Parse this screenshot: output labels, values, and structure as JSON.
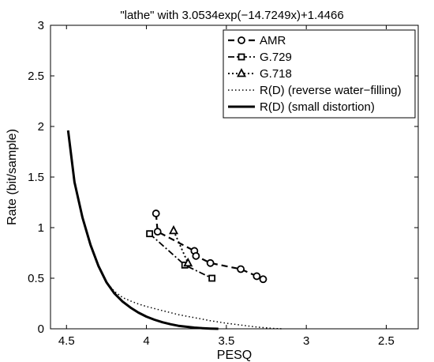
{
  "chart_data": {
    "type": "line",
    "title": "\"lathe\" with 3.0534exp(−14.7249x)+1.4466",
    "xlabel": "PESQ",
    "ylabel": "Rate (bit/sample)",
    "xlim": [
      4.6,
      2.3
    ],
    "ylim": [
      0,
      3
    ],
    "x_reversed": true,
    "grid": false,
    "legend_position": "top-right",
    "xticks": [
      4.5,
      4,
      3.5,
      3,
      2.5
    ],
    "xtick_labels": [
      "4.5",
      "4",
      "3.5",
      "3",
      "2.5"
    ],
    "yticks": [
      0,
      0.5,
      1,
      1.5,
      2,
      2.5,
      3
    ],
    "ytick_labels": [
      "0",
      "0.5",
      "1",
      "1.5",
      "2",
      "2.5",
      "3"
    ],
    "series": [
      {
        "name": "AMR",
        "style": "dashed",
        "marker": "circle",
        "x": [
          3.94,
          3.93,
          3.7,
          3.69,
          3.6,
          3.41,
          3.31,
          3.27
        ],
        "y": [
          1.14,
          0.96,
          0.77,
          0.72,
          0.65,
          0.59,
          0.52,
          0.49
        ]
      },
      {
        "name": "G.729",
        "style": "dashdot",
        "marker": "square",
        "x": [
          3.98,
          3.76,
          3.59
        ],
        "y": [
          0.94,
          0.63,
          0.5
        ]
      },
      {
        "name": "G.718",
        "style": "dotted",
        "marker": "triangle",
        "x": [
          3.83,
          3.74
        ],
        "y": [
          0.97,
          0.65
        ]
      },
      {
        "name": "R(D) (reverse water−filling)",
        "style": "fine-dotted",
        "marker": "none",
        "x": [
          4.49,
          4.45,
          4.4,
          4.35,
          4.3,
          4.25,
          4.2,
          4.15,
          4.1,
          4.05,
          4.0,
          3.95,
          3.9,
          3.85,
          3.8,
          3.75,
          3.7,
          3.65,
          3.6,
          3.55,
          3.5,
          3.45,
          3.4,
          3.35,
          3.3,
          3.25,
          3.2,
          3.15
        ],
        "y": [
          1.96,
          1.45,
          1.1,
          0.83,
          0.62,
          0.46,
          0.37,
          0.31,
          0.275,
          0.245,
          0.22,
          0.2,
          0.18,
          0.16,
          0.14,
          0.125,
          0.11,
          0.095,
          0.08,
          0.068,
          0.055,
          0.045,
          0.035,
          0.025,
          0.016,
          0.009,
          0.003,
          0.0
        ]
      },
      {
        "name": "R(D) (small distortion)",
        "style": "solid",
        "marker": "none",
        "x": [
          4.49,
          4.45,
          4.4,
          4.35,
          4.3,
          4.25,
          4.2,
          4.15,
          4.1,
          4.05,
          4.0,
          3.95,
          3.9,
          3.85,
          3.8,
          3.75,
          3.7,
          3.65,
          3.6,
          3.55
        ],
        "y": [
          1.96,
          1.45,
          1.1,
          0.83,
          0.62,
          0.46,
          0.35,
          0.27,
          0.21,
          0.16,
          0.12,
          0.09,
          0.065,
          0.045,
          0.03,
          0.02,
          0.012,
          0.006,
          0.002,
          0.0
        ]
      }
    ]
  }
}
